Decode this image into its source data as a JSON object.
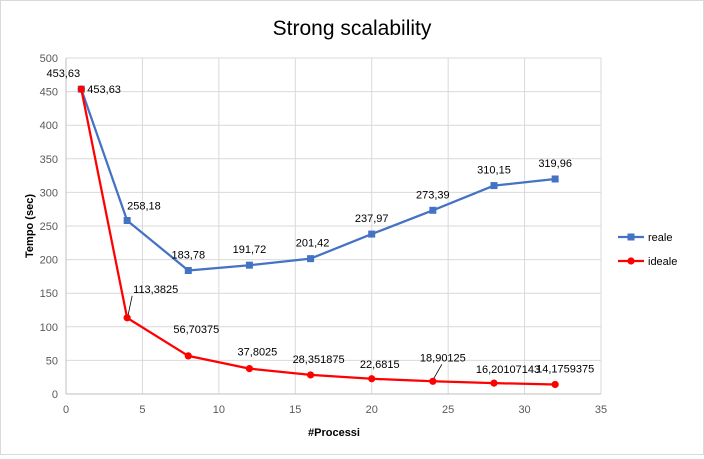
{
  "chart_data": {
    "type": "line",
    "title": "Strong scalability",
    "xlabel": "#Processi",
    "ylabel": "Tempo (sec)",
    "xlim": [
      0,
      35
    ],
    "ylim": [
      0,
      500
    ],
    "xticks": [
      0,
      5,
      10,
      15,
      20,
      25,
      30,
      35
    ],
    "yticks": [
      0,
      50,
      100,
      150,
      200,
      250,
      300,
      350,
      400,
      450,
      500
    ],
    "grid": true,
    "legend_position": "right",
    "series": [
      {
        "name": "reale",
        "color": "#4472c4",
        "marker": "square",
        "x": [
          1,
          4,
          8,
          12,
          16,
          20,
          24,
          28,
          32
        ],
        "y": [
          453.63,
          258.18,
          183.78,
          191.72,
          201.42,
          237.97,
          273.39,
          310.15,
          319.96
        ],
        "labels": [
          "453,63",
          "258,18",
          "183,78",
          "191,72",
          "201,42",
          "237,97",
          "273,39",
          "310,15",
          "319,96"
        ]
      },
      {
        "name": "ideale",
        "color": "#ff0000",
        "marker": "circle",
        "x": [
          1,
          4,
          8,
          12,
          16,
          20,
          24,
          28,
          32
        ],
        "y": [
          453.63,
          113.3825,
          56.70375,
          37.8025,
          28.351875,
          22.6815,
          18.90125,
          16.20107143,
          14.1759375
        ],
        "labels": [
          "453,63",
          "113,3825",
          "56,70375",
          "37,8025",
          "28,351875",
          "22,6815",
          "18,90125",
          "16,20107143",
          "14,1759375"
        ]
      }
    ]
  }
}
